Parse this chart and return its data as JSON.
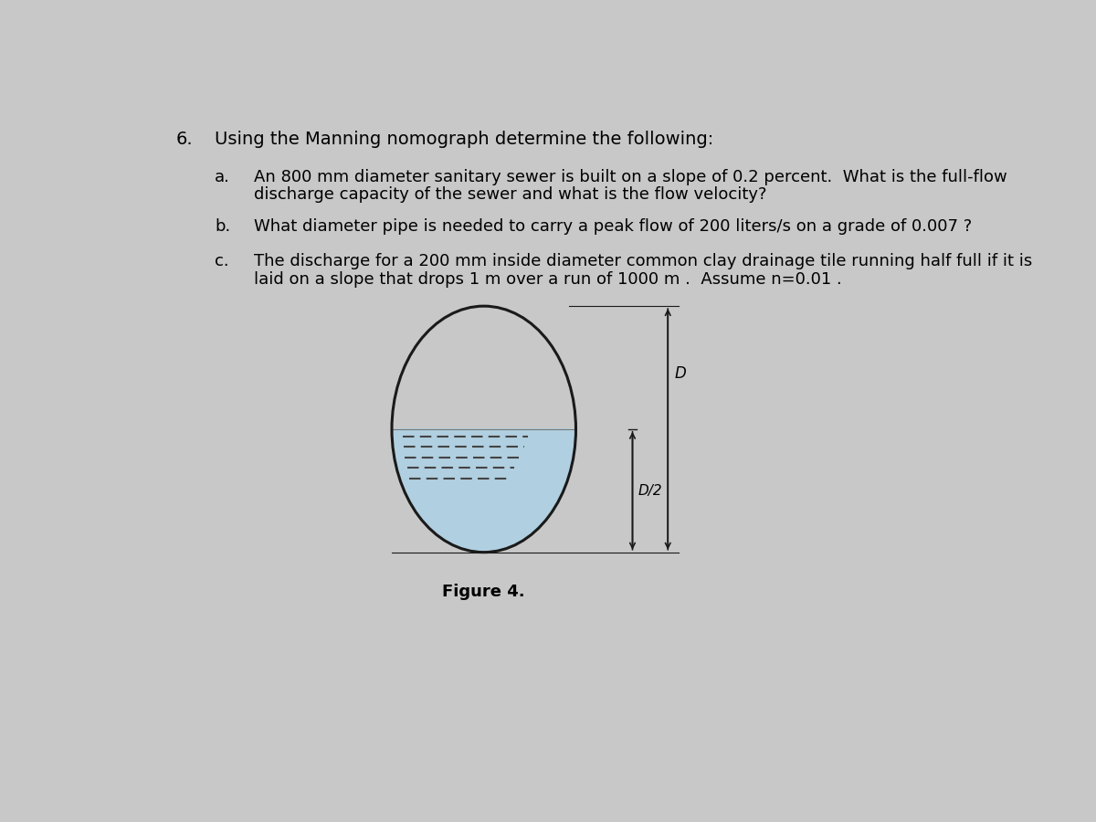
{
  "bg_color": "#c8c8c8",
  "title_number": "6.",
  "title_text": "Using the Manning nomograph determine the following:",
  "items": [
    {
      "label": "a.",
      "text_line1": "An 800 mm diameter sanitary sewer is built on a slope of 0.2 percent.  What is the full-flow",
      "text_line2": "discharge capacity of the sewer and what is the flow velocity?"
    },
    {
      "label": "b.",
      "text_line1": "What diameter pipe is needed to carry a peak flow of 200 liters/s on a grade of 0.007 ?",
      "text_line2": ""
    },
    {
      "label": "c.",
      "text_line1": "The discharge for a 200 mm inside diameter common clay drainage tile running half full if it is",
      "text_line2": "laid on a slope that drops 1 m over a run of 1000 m .  Assume n=0.01 ."
    }
  ],
  "figure_label": "Figure 4.",
  "water_color": "#b0cfe0",
  "pipe_color": "#1a1a1a",
  "pipe_linewidth": 2.2,
  "annotation_color": "#1a1a1a",
  "flow_lines_color": "#444444",
  "font_family": "DejaVu Sans",
  "font_size_title": 14,
  "font_size_items": 13,
  "font_size_figure": 13,
  "font_size_annot": 12
}
